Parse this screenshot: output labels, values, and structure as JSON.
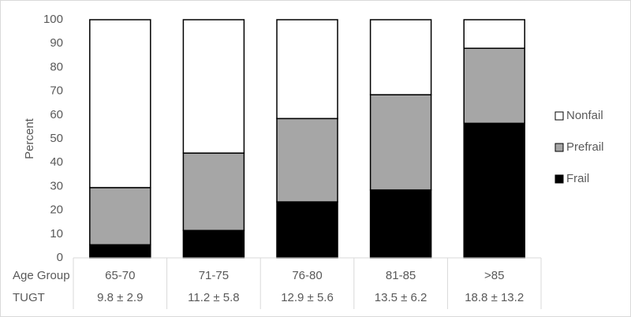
{
  "chart_data": {
    "type": "stacked_bar",
    "y_label": "Percent",
    "categories": [
      "65-70",
      "71-75",
      "76-80",
      "81-85",
      ">85"
    ],
    "series": [
      {
        "name": "Frail",
        "color": "#000000",
        "values": [
          5.5,
          11.5,
          23.5,
          28.5,
          56.5
        ]
      },
      {
        "name": "Prefrail",
        "color": "#a6a6a6",
        "values": [
          24,
          32.5,
          35,
          40,
          31.5
        ]
      },
      {
        "name": "Nonfail",
        "color": "#ffffff",
        "values": [
          70.5,
          56,
          41.5,
          31.5,
          12
        ]
      }
    ],
    "ylim": [
      0,
      100
    ],
    "yticks": [
      0,
      10,
      20,
      30,
      40,
      50,
      60,
      70,
      80,
      90,
      100
    ],
    "grid": false,
    "legend": "right",
    "table": {
      "row_labels": [
        "Age Group",
        "TUGT"
      ],
      "tugt": [
        "9.8 ± 2.9",
        "11.2 ± 5.8",
        "12.9 ± 5.6",
        "13.5 ± 6.2",
        "18.8 ± 13.2"
      ]
    }
  }
}
